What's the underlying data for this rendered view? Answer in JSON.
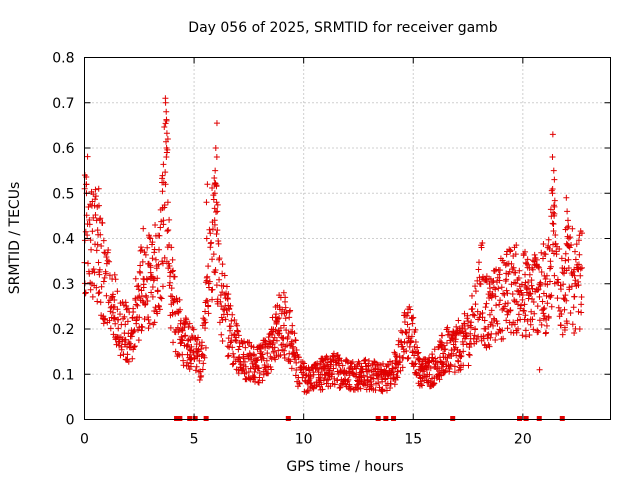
{
  "chart_data": {
    "type": "scatter",
    "title": "Day 056 of 2025, SRMTID for receiver gamb",
    "xlabel": "GPS time / hours",
    "ylabel": "SRMTID / TECUs",
    "xlim": [
      0,
      24
    ],
    "ylim": [
      0,
      0.8
    ],
    "xticks": [
      0,
      5,
      10,
      15,
      20
    ],
    "yticks": [
      0,
      0.1,
      0.2,
      0.3,
      0.4,
      0.5,
      0.6,
      0.7,
      0.8
    ],
    "xtick_labels": [
      "0",
      "5",
      "10",
      "15",
      "20"
    ],
    "ytick_labels": [
      "0",
      "0.1",
      "0.2",
      "0.3",
      "0.4",
      "0.5",
      "0.6",
      "0.7",
      "0.8"
    ],
    "grid": true,
    "marker": "+",
    "color": "#e00000",
    "envelope_x": [
      0,
      0.1,
      0.3,
      0.6,
      0.9,
      1.2,
      1.5,
      1.8,
      2.1,
      2.4,
      2.7,
      3.0,
      3.3,
      3.5,
      3.7,
      3.9,
      4.1,
      4.3,
      4.6,
      5.0,
      5.3,
      5.6,
      5.8,
      6.0,
      6.2,
      6.5,
      6.8,
      7.1,
      7.5,
      8.0,
      8.5,
      9.0,
      9.4,
      9.8,
      10.2,
      10.8,
      11.4,
      12.0,
      12.5,
      13.0,
      13.5,
      14.0,
      14.4,
      14.7,
      15.0,
      15.3,
      15.6,
      16.0,
      16.5,
      17.0,
      17.5,
      17.8,
      18.0,
      18.3,
      18.7,
      19.0,
      19.3,
      19.6,
      20.0,
      20.4,
      20.8,
      21.1,
      21.4,
      21.6,
      21.9,
      22.1,
      22.4,
      22.7
    ],
    "envelope_y": [
      0.31,
      0.48,
      0.38,
      0.4,
      0.3,
      0.27,
      0.22,
      0.2,
      0.18,
      0.25,
      0.32,
      0.3,
      0.33,
      0.36,
      0.55,
      0.3,
      0.24,
      0.2,
      0.17,
      0.15,
      0.13,
      0.25,
      0.38,
      0.42,
      0.28,
      0.22,
      0.17,
      0.14,
      0.13,
      0.12,
      0.16,
      0.22,
      0.18,
      0.1,
      0.09,
      0.1,
      0.11,
      0.1,
      0.1,
      0.1,
      0.09,
      0.1,
      0.14,
      0.2,
      0.17,
      0.11,
      0.1,
      0.12,
      0.15,
      0.16,
      0.18,
      0.22,
      0.26,
      0.24,
      0.25,
      0.27,
      0.28,
      0.29,
      0.28,
      0.27,
      0.3,
      0.28,
      0.42,
      0.3,
      0.27,
      0.35,
      0.28,
      0.32
    ],
    "spikes": [
      {
        "x": 3.75,
        "values": [
          0.71,
          0.7,
          0.68,
          0.66,
          0.62,
          0.6,
          0.58,
          0.52,
          0.48
        ]
      },
      {
        "x": 6.0,
        "values": [
          0.655,
          0.6,
          0.58,
          0.55,
          0.52,
          0.5,
          0.48,
          0.46,
          0.43,
          0.41
        ]
      },
      {
        "x": 5.6,
        "values": [
          0.52,
          0.48,
          0.4
        ]
      },
      {
        "x": 0.05,
        "values": [
          0.54,
          0.52,
          0.51,
          0.5
        ]
      },
      {
        "x": 0.6,
        "values": [
          0.51,
          0.47,
          0.44
        ]
      },
      {
        "x": 21.4,
        "values": [
          0.63,
          0.58,
          0.55,
          0.53,
          0.5,
          0.47,
          0.45
        ]
      },
      {
        "x": 22.0,
        "values": [
          0.49,
          0.46,
          0.44,
          0.42
        ]
      },
      {
        "x": 20.8,
        "values": [
          0.11
        ]
      },
      {
        "x": 9.1,
        "values": [
          0.28,
          0.27,
          0.26
        ]
      },
      {
        "x": 18.1,
        "values": [
          0.39,
          0.385,
          0.38
        ]
      }
    ],
    "gap_markers_x": [
      4.2,
      4.35,
      4.8,
      5.05,
      5.55,
      9.3,
      13.4,
      13.75,
      14.1,
      16.8,
      19.85,
      20.15,
      20.75,
      21.8
    ]
  }
}
